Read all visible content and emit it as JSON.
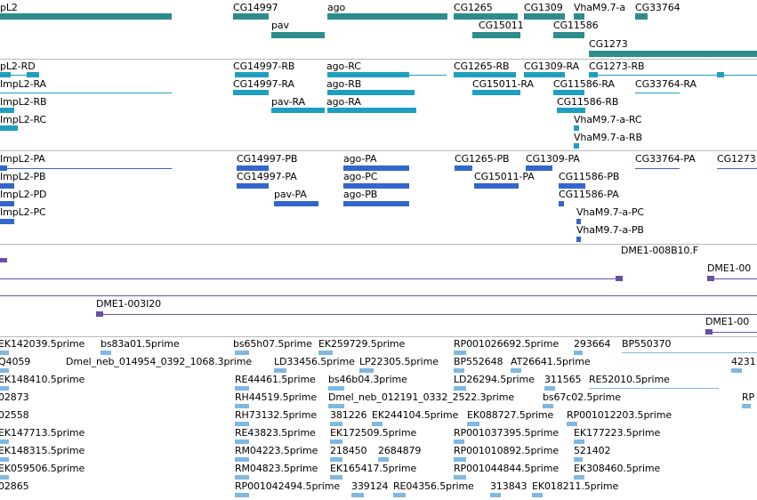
{
  "colors": {
    "gene": "#2e8b8b",
    "transcript": "#1f9fbf",
    "protein": "#3366cc",
    "clone": "#6a4fa0",
    "est": "#7fb8e0",
    "separator": "#b8b8b8"
  },
  "tracks": {
    "genes": {
      "labels": [
        "pL2",
        "CG14997",
        "ago",
        "CG1265",
        "CG1309",
        "VhaM9.7-a",
        "CG33764",
        "pav",
        "CG15011",
        "CG11586",
        "CG1273"
      ]
    },
    "transcripts": {
      "labels": [
        "pL2-RD",
        "CG14997-RB",
        "ago-RC",
        "CG1265-RB",
        "CG1309-RA",
        "CG1273-RB",
        "ImpL2-RA",
        "CG14997-RA",
        "ago-RB",
        "CG15011-RA",
        "CG11586-RA",
        "CG33764-RA",
        "ImpL2-RB",
        "pav-RA",
        "ago-RA",
        "CG11586-RB",
        "ImpL2-RC",
        "VhaM9.7-a-RC",
        "VhaM9.7-a-RB"
      ]
    },
    "proteins": {
      "labels": [
        "ImpL2-PA",
        "CG14997-PB",
        "ago-PA",
        "CG1265-PB",
        "CG1309-PA",
        "CG33764-PA",
        "CG1273",
        "ImpL2-PB",
        "CG14997-PA",
        "ago-PC",
        "CG15011-PA",
        "CG11586-PB",
        "ImpL2-PD",
        "pav-PA",
        "ago-PB",
        "CG11586-PA",
        "ImpL2-PC",
        "VhaM9.7-a-PC",
        "VhaM9.7-a-PB"
      ]
    },
    "clones": {
      "labels": [
        "DME1-008B10.F",
        "DME1-00",
        "DME1-003I20",
        "DME1-00"
      ]
    },
    "ests": {
      "labels": [
        "EK142039.5prime",
        "bs83a01.5prime",
        "bs65h07.5prime",
        "EK259729.5prime",
        "RP001026692.5prime",
        "293664",
        "BP550370",
        "Q4059",
        "Dmel_neb_014954_0392_1068.3prime",
        "LD33456.5prime",
        "LP22305.5prime",
        "BP552648",
        "AT26641.5prime",
        "4231",
        "EK148410.5prime",
        "RE44461.5prime",
        "bs46b04.3prime",
        "LD26294.5prime",
        "311565",
        "RE52010.5prime",
        "02873",
        "RH44519.5prime",
        "Dmel_neb_012191_0332_2522.3prime",
        "bs67c02.5prime",
        "RP",
        "02558",
        "RH73132.5prime",
        "381226",
        "EK244104.5prime",
        "EK088727.5prime",
        "RP001012203.5prime",
        "EK147713.5prime",
        "RE43823.5prime",
        "EK172509.5prime",
        "RP001037395.5prime",
        "EK177223.5prime",
        "EK148315.5prime",
        "RM04223.5prime",
        "218450",
        "2684879",
        "RP001010892.5prime",
        "521402",
        "EK059506.5prime",
        "RM04823.5prime",
        "EK165417.5prime",
        "RP001044844.5prime",
        "EK308460.5prime",
        "02865",
        "RP001042494.5prime",
        "339124",
        "RE04356.5prime",
        "313843",
        "EK018211.5prime"
      ]
    }
  }
}
